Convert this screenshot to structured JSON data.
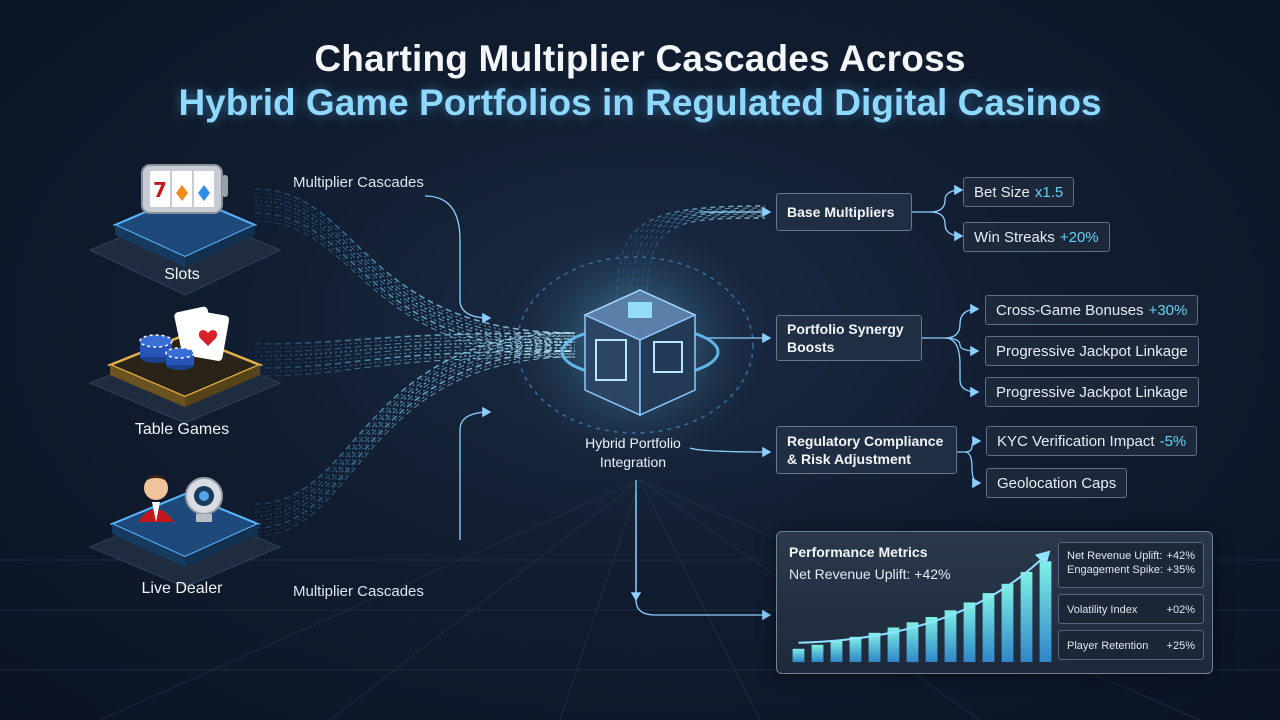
{
  "title": {
    "line1": "Charting Multiplier Cascades Across",
    "line2": "Hybrid Game Portfolios in Regulated Digital Casinos"
  },
  "sources": [
    {
      "label": "Slots",
      "icon": "slot-machine-icon"
    },
    {
      "label": "Table Games",
      "icon": "casino-chips-cards-icon"
    },
    {
      "label": "Live Dealer",
      "icon": "live-dealer-camera-icon"
    }
  ],
  "flow_labels": {
    "top": "Multiplier Cascades",
    "bottom": "Multiplier Cascades"
  },
  "hub": {
    "label_line1": "Hybrid Portfolio",
    "label_line2": "Integration",
    "icon": "integration-cube-icon"
  },
  "categories": [
    {
      "label": "Base Multipliers",
      "items": [
        {
          "text": "Bet Size",
          "value": "x1.5"
        },
        {
          "text": "Win Streaks",
          "value": "+20%"
        }
      ]
    },
    {
      "label_line1": "Portfolio Synergy",
      "label_line2": "Boosts",
      "items": [
        {
          "text": "Cross-Game Bonuses",
          "value": "+30%"
        },
        {
          "text": "Progressive Jackpot Linkage",
          "value": ""
        },
        {
          "text": "Progressive Jackpot Linkage",
          "value": ""
        }
      ]
    },
    {
      "label_line1": "Regulatory Compliance",
      "label_line2": "& Risk Adjustment",
      "items": [
        {
          "text": "KYC Verification Impact",
          "value": "-5%"
        },
        {
          "text": "Geolocation Caps",
          "value": ""
        }
      ]
    }
  ],
  "performance": {
    "title": "Performance Metrics",
    "subtitle": "Net Revenue Uplift: +42%",
    "metrics": [
      {
        "name": "Net Revenue Uplift:",
        "value": "+42%"
      },
      {
        "name": "Engagement Spike:",
        "value": "+35%"
      },
      {
        "name": "Volatility Index",
        "value": "+02%"
      },
      {
        "name": "Player Retention",
        "value": "+25%"
      }
    ],
    "colors": {
      "bar_low": "#2f86c9",
      "bar_high": "#7ff0e4",
      "arrow": "#8fe3ff"
    }
  },
  "chart_data": {
    "type": "bar",
    "title": "Performance Metrics",
    "values": [
      1,
      1.3,
      1.6,
      1.9,
      2.2,
      2.6,
      3.0,
      3.4,
      3.9,
      4.5,
      5.2,
      5.9,
      6.8,
      7.6
    ],
    "ylim": [
      0,
      8
    ],
    "grid": false,
    "legend": "none"
  },
  "accent_colors": {
    "glow": "#5cc8ff",
    "value_text": "#62d2f5"
  }
}
